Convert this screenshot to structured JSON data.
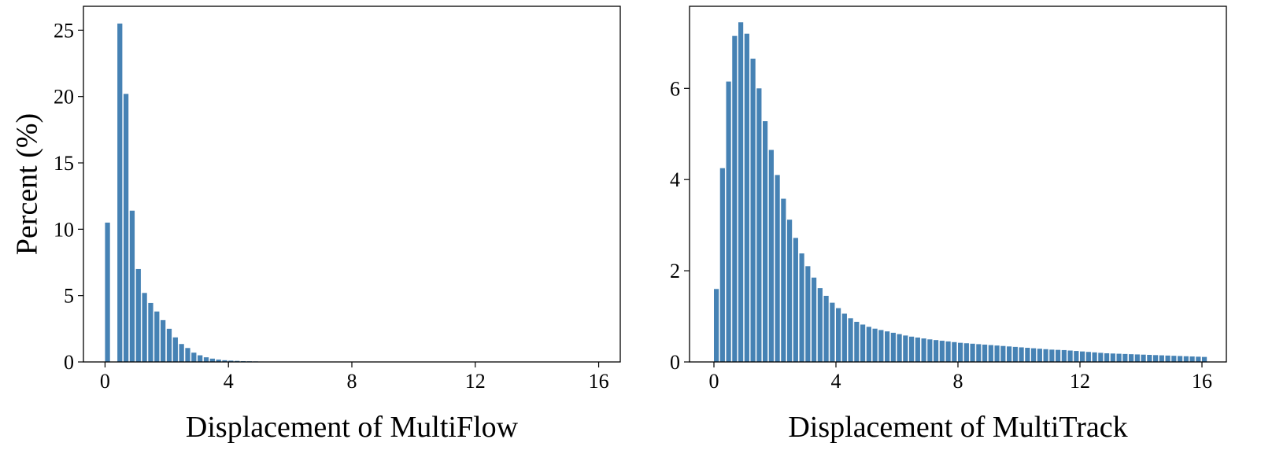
{
  "colors": {
    "bar": "#4682b4",
    "axis": "#000000",
    "background": "#ffffff"
  },
  "chart_data": [
    {
      "type": "bar",
      "xlabel": "Displacement of MultiFlow",
      "ylabel": "Percent (%)",
      "xlim": [
        -0.7,
        16.7
      ],
      "ylim": [
        0,
        26.8
      ],
      "xticks": [
        0,
        4,
        8,
        12,
        16
      ],
      "yticks": [
        0,
        5,
        10,
        15,
        20,
        25
      ],
      "bin_width": 0.2,
      "bar_width_fraction": 0.8,
      "x": [
        0.0,
        0.4,
        0.6,
        0.8,
        1.0,
        1.2,
        1.4,
        1.6,
        1.8,
        2.0,
        2.2,
        2.4,
        2.6,
        2.8,
        3.0,
        3.2,
        3.4,
        3.6,
        3.8,
        4.0,
        4.2,
        4.4,
        4.6,
        4.8,
        5.0,
        5.2,
        5.4,
        5.6
      ],
      "values": [
        10.5,
        25.5,
        20.2,
        11.4,
        7.0,
        5.2,
        4.45,
        3.8,
        3.15,
        2.5,
        1.85,
        1.35,
        1.05,
        0.7,
        0.5,
        0.35,
        0.25,
        0.18,
        0.13,
        0.1,
        0.08,
        0.06,
        0.05,
        0.04,
        0.03,
        0.02,
        0.015,
        0.01
      ],
      "grid": false,
      "legend": "none"
    },
    {
      "type": "bar",
      "xlabel": "Displacement of MultiTrack",
      "ylabel": "",
      "xlim": [
        -0.8,
        16.8
      ],
      "ylim": [
        0,
        7.8
      ],
      "xticks": [
        0,
        4,
        8,
        12,
        16
      ],
      "yticks": [
        0,
        2,
        4,
        6
      ],
      "bin_width": 0.2,
      "bar_width_fraction": 0.8,
      "x_start": 0.0,
      "values": [
        1.6,
        4.25,
        6.15,
        7.15,
        7.45,
        7.2,
        6.65,
        6.0,
        5.28,
        4.65,
        4.1,
        3.58,
        3.12,
        2.72,
        2.38,
        2.1,
        1.85,
        1.62,
        1.45,
        1.3,
        1.18,
        1.06,
        0.96,
        0.88,
        0.82,
        0.77,
        0.73,
        0.7,
        0.67,
        0.64,
        0.61,
        0.58,
        0.555,
        0.535,
        0.515,
        0.495,
        0.48,
        0.465,
        0.45,
        0.435,
        0.42,
        0.41,
        0.4,
        0.39,
        0.38,
        0.37,
        0.36,
        0.35,
        0.34,
        0.33,
        0.32,
        0.31,
        0.3,
        0.29,
        0.28,
        0.27,
        0.265,
        0.26,
        0.25,
        0.24,
        0.23,
        0.22,
        0.21,
        0.2,
        0.19,
        0.185,
        0.18,
        0.175,
        0.17,
        0.165,
        0.16,
        0.155,
        0.15,
        0.145,
        0.14,
        0.135,
        0.13,
        0.125,
        0.12,
        0.115,
        0.11
      ],
      "grid": false,
      "legend": "none"
    }
  ]
}
